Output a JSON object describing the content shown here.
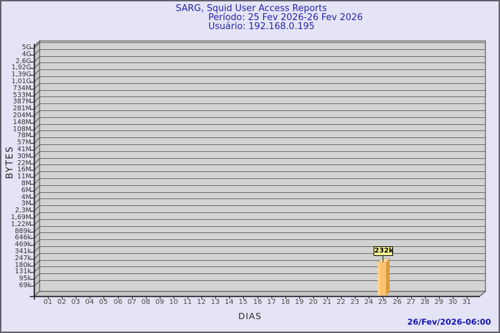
{
  "header": {
    "title_line": "SARG, Squid User Access Reports",
    "period_line": "Período: 25 Fev 2026-26 Fev 2026",
    "user_line": "Usuário: 192.168.0.195"
  },
  "footer": {
    "generated_at": "26/Fev/2026-06:00"
  },
  "chart_data": {
    "type": "bar",
    "title": "SARG, Squid User Access Reports",
    "subtitle_lines": [
      "Período: 25 Fev 2026-26 Fev 2026",
      "Usuário: 192.168.0.195"
    ],
    "xlabel": "DIAS",
    "ylabel": "BYTES",
    "y_scale": "log",
    "grid": "horizontal",
    "legend": null,
    "x_categories": [
      "01",
      "02",
      "03",
      "04",
      "05",
      "06",
      "07",
      "08",
      "09",
      "10",
      "11",
      "12",
      "13",
      "14",
      "15",
      "16",
      "17",
      "18",
      "19",
      "20",
      "21",
      "22",
      "23",
      "24",
      "25",
      "26",
      "27",
      "28",
      "29",
      "30",
      "31"
    ],
    "y_tick_labels_top_to_bottom": [
      "5G",
      "4G",
      "2,6G",
      "1,92G",
      "1,39G",
      "1,01G",
      "734M",
      "533M",
      "387M",
      "281M",
      "204M",
      "148M",
      "108M",
      "78M",
      "57M",
      "41M",
      "30M",
      "22M",
      "16M",
      "11M",
      "8M",
      "6M",
      "4M",
      "3M",
      "2,3M",
      "1,69M",
      "1,22M",
      "889k",
      "646k",
      "469k",
      "341k",
      "247k",
      "180k",
      "131k",
      "95k",
      "69k"
    ],
    "bars": [
      {
        "day": "25",
        "label": "232k",
        "approx_value_bytes": 232000
      }
    ]
  },
  "colors": {
    "background": "#e4e4f6",
    "frame_border": "#60606c",
    "plot_bg": "#d3d3d3",
    "wall_fill": "#c8c8c8",
    "gridline": "#6b6b6b",
    "outline": "#3f3f3f",
    "axis": "#1c1c1c",
    "bar_front": "#fdc270",
    "bar_side": "#d89b44",
    "bar_top": "#ffdfa6",
    "annotation_bg": "#ffff99",
    "annotation_border": "#000000",
    "title_color": "#2525a9",
    "footer_color": "#1313b0",
    "tick_label_color": "#333333"
  }
}
